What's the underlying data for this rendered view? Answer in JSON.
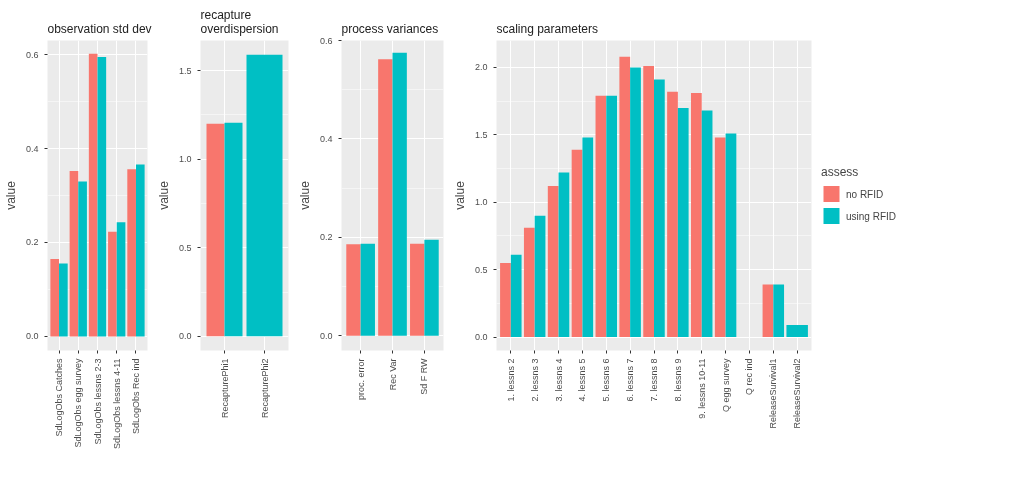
{
  "chart_data": [
    {
      "type": "bar",
      "title": "observation std dev",
      "ylabel": "value",
      "categories": [
        "SdLogObs Catches",
        "SdLogObs egg survey",
        "SdLogObs lessns 2-3",
        "SdLogObs lessns 4-11",
        "SdLogObs Rec ind"
      ],
      "series": [
        {
          "color": "#f8766d",
          "values": [
            0.165,
            0.352,
            0.602,
            0.223,
            0.356
          ]
        },
        {
          "color": "#00bfc4",
          "values": [
            0.155,
            0.33,
            0.595,
            0.243,
            0.366
          ]
        }
      ],
      "ylim": [
        -0.03,
        0.63
      ],
      "yticks": [
        {
          "value": 0,
          "label": "0.0"
        },
        0.2,
        0.4,
        0.6
      ],
      "grid": true,
      "legend": false
    },
    {
      "type": "bar",
      "title": "recapture overdispersion",
      "ylabel": "value",
      "categories": [
        "RecapturePhi1",
        "RecapturePhi2"
      ],
      "series": [
        {
          "color": "#f8766d",
          "values": [
            1.2,
            null
          ]
        },
        {
          "color": "#00bfc4",
          "values": [
            1.205,
            1.59
          ]
        }
      ],
      "ylim": [
        -0.08,
        1.67
      ],
      "yticks": [
        {
          "value": 0,
          "label": "0.0"
        },
        0.5,
        {
          "value": 1,
          "label": "1.0"
        },
        1.5
      ],
      "grid": true,
      "legend": false
    },
    {
      "type": "bar",
      "title": "process variances",
      "ylabel": "value",
      "categories": [
        "proc. error",
        "Rec Var",
        "Sd F RW"
      ],
      "series": [
        {
          "color": "#f8766d",
          "values": [
            0.186,
            0.562,
            0.187
          ]
        },
        {
          "color": "#00bfc4",
          "values": [
            0.187,
            0.575,
            0.195
          ]
        }
      ],
      "ylim": [
        -0.03,
        0.6
      ],
      "yticks": [
        {
          "value": 0,
          "label": "0.0"
        },
        0.2,
        0.4,
        0.6
      ],
      "grid": true,
      "legend": false
    },
    {
      "type": "bar",
      "title": "scaling parameters",
      "ylabel": "value",
      "legend_title": "assess",
      "categories": [
        "1. lessns 2",
        "2. lessns 3",
        "3. lessns 4",
        "4. lessns 5",
        "5. lessns 6",
        "6. lessns 7",
        "7. lessns 8",
        "8. lessns 9",
        "9. lessns 10-11",
        "Q egg survey",
        "Q rec ind",
        "ReleaseSurvival1",
        "ReleaseSurvival2"
      ],
      "series": [
        {
          "name": "no RFID",
          "color": "#f8766d",
          "values": [
            0.55,
            0.81,
            1.12,
            1.39,
            1.79,
            2.08,
            2.01,
            1.82,
            1.81,
            1.48,
            null,
            0.39,
            null
          ]
        },
        {
          "name": "using RFID",
          "color": "#00bfc4",
          "values": [
            0.61,
            0.9,
            1.22,
            1.48,
            1.79,
            2.0,
            1.91,
            1.7,
            1.68,
            1.51,
            null,
            0.39,
            0.09
          ]
        }
      ],
      "ylim": [
        -0.1,
        2.2
      ],
      "yticks": [
        {
          "value": 0,
          "label": "0.0"
        },
        0.5,
        {
          "value": 1,
          "label": "1.0"
        },
        1.5,
        {
          "value": 2,
          "label": "2.0"
        }
      ],
      "grid": true,
      "legend": "right"
    }
  ]
}
